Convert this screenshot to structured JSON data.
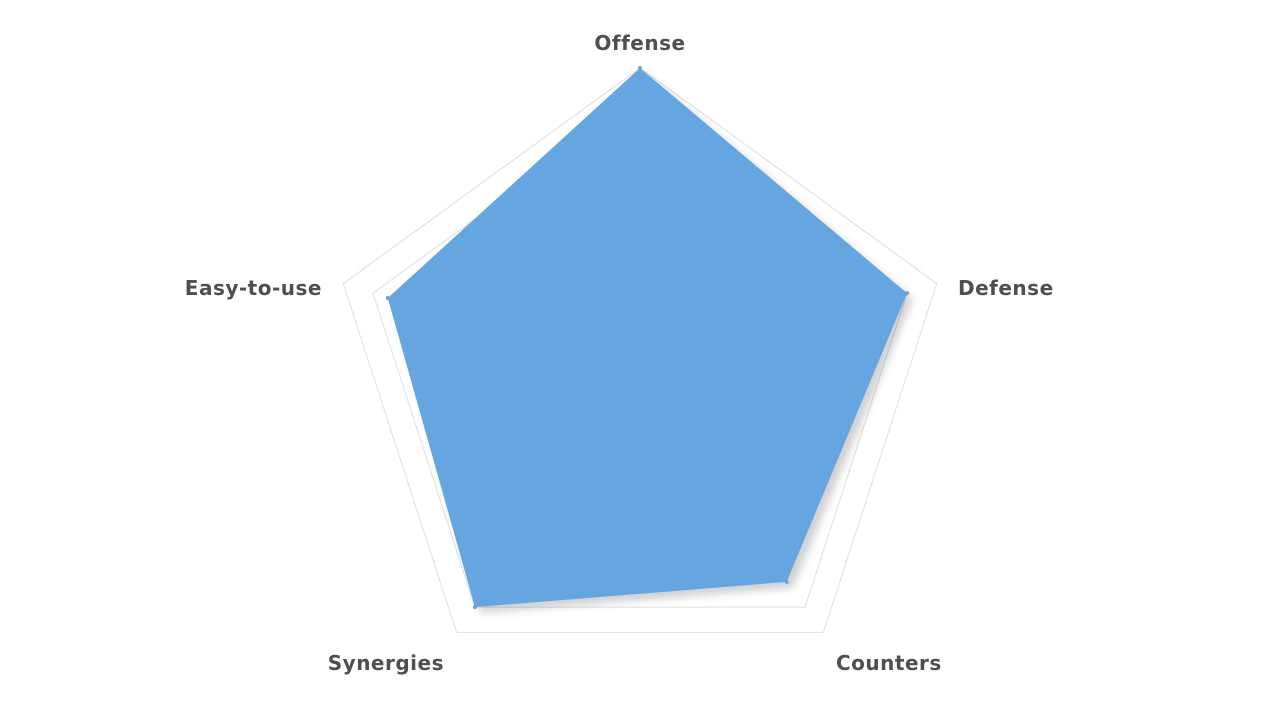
{
  "chart_data": {
    "type": "radar",
    "axes": [
      "Offense",
      "Defense",
      "Counters",
      "Synergies",
      "Easy-to-use"
    ],
    "values": [
      100,
      90,
      80,
      90,
      85
    ],
    "range": [
      0,
      100
    ],
    "gridlines": true,
    "legend": "none",
    "fill_color": "#65a6e0"
  },
  "colors": {
    "grid": "#dedede",
    "label": "#4f4f4f",
    "background": "#ffffff"
  }
}
